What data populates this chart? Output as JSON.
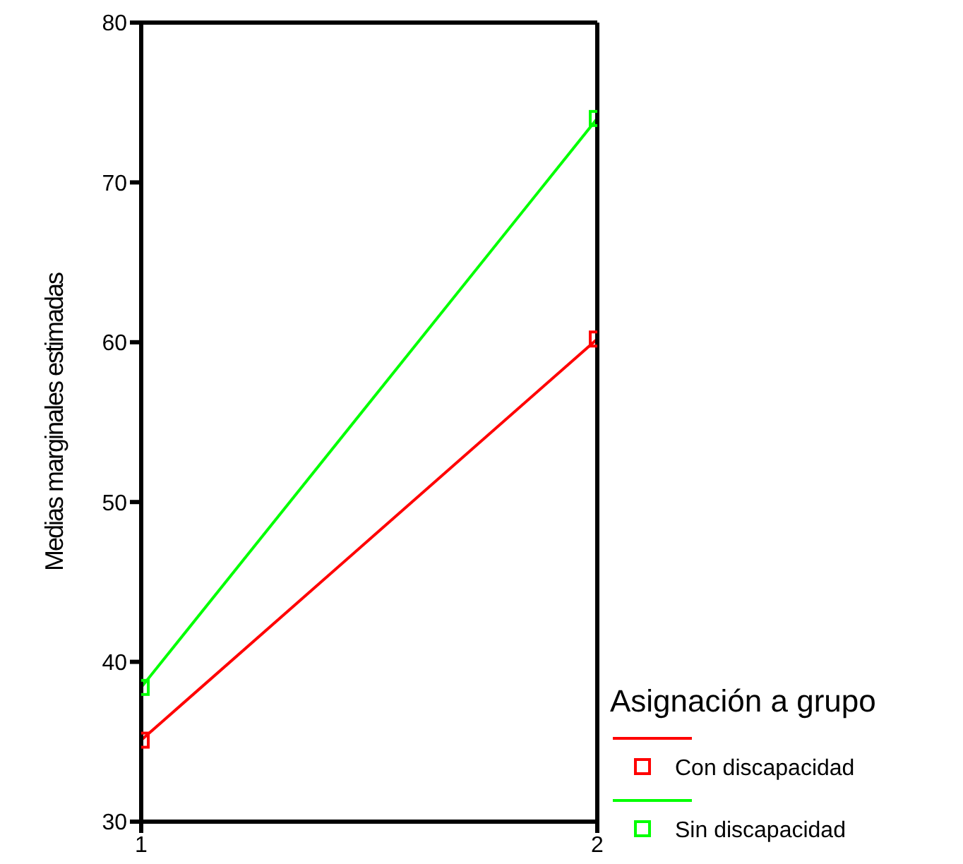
{
  "chart_data": {
    "type": "line",
    "ylabel": "Medias marginales estimadas",
    "legend_title": "Asignación a grupo",
    "x": [
      1,
      2
    ],
    "xlim": [
      1,
      2
    ],
    "xticks": [
      1,
      2
    ],
    "ylim": [
      30,
      80
    ],
    "yticks": [
      30,
      40,
      50,
      60,
      70,
      80
    ],
    "series": [
      {
        "name": "Con discapacidad",
        "color": "#ff0000",
        "values": [
          35.1,
          60.2
        ]
      },
      {
        "name": "Sin discapacidad",
        "color": "#00ff00",
        "values": [
          38.4,
          74.0
        ]
      }
    ],
    "marker": "square",
    "line_style": "solid",
    "grid": false,
    "legend": "right"
  }
}
